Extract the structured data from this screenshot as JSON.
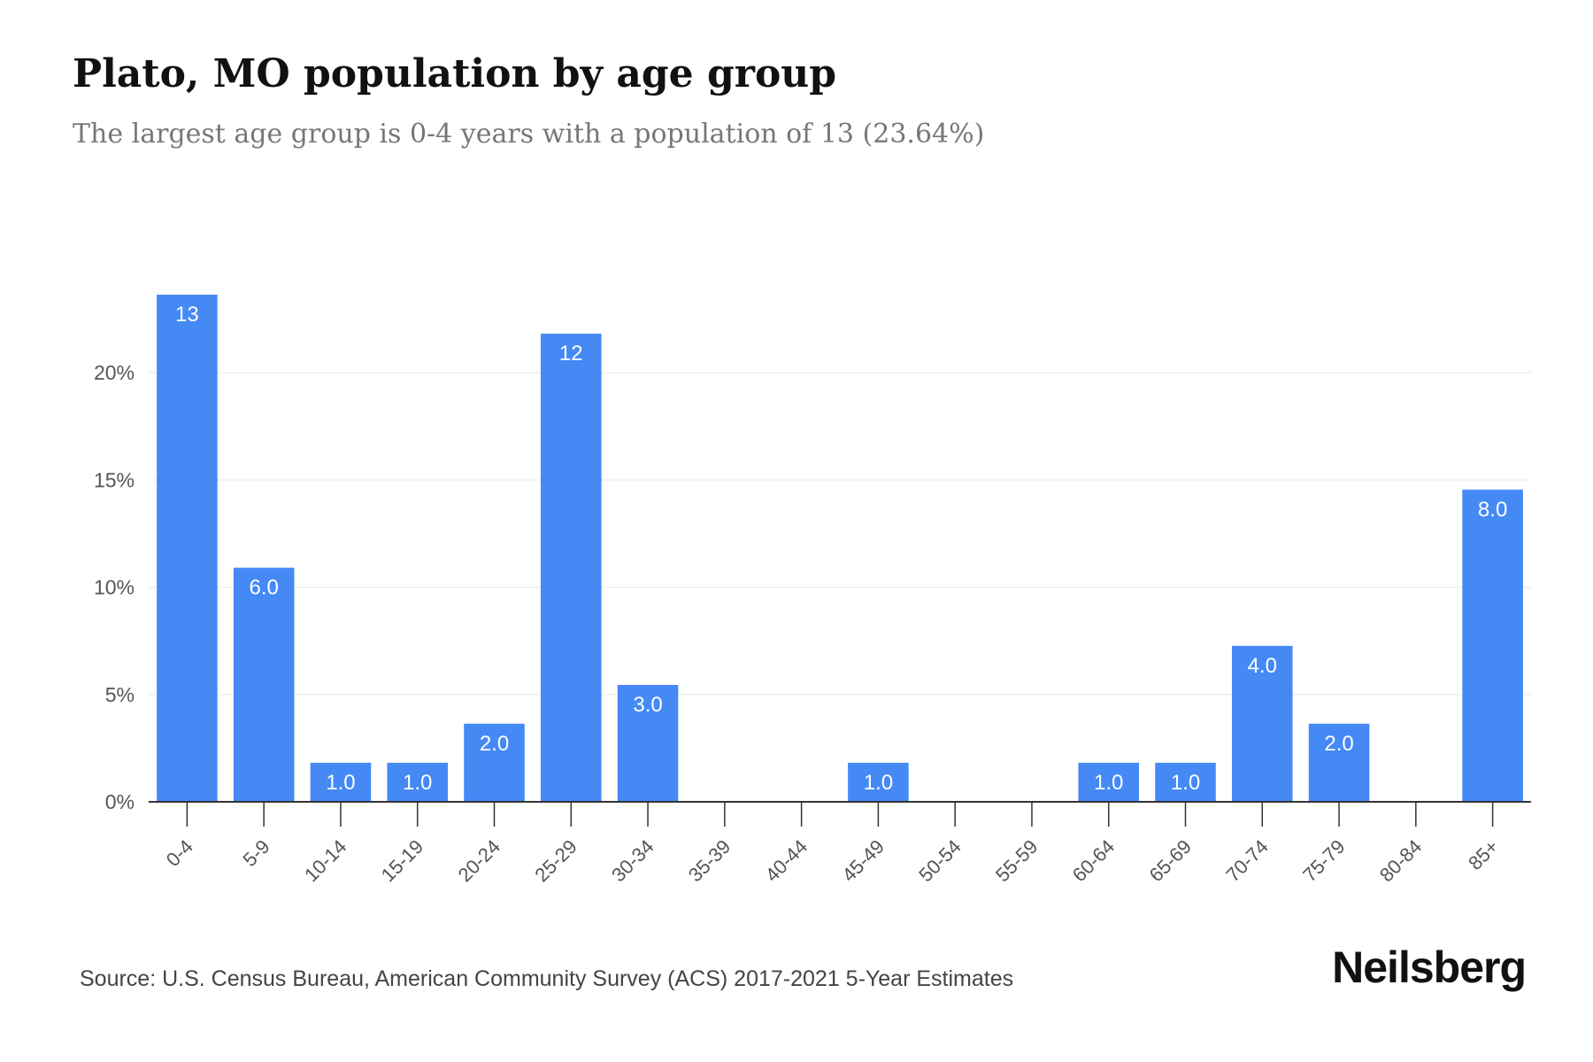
{
  "header": {
    "title": "Plato, MO population by age group",
    "subtitle": "The largest age group is 0-4 years with a population of 13 (23.64%)"
  },
  "footer": {
    "source": "Source: U.S. Census Bureau, American Community Survey (ACS) 2017-2021 5-Year Estimates",
    "brand": "Neilsberg"
  },
  "colors": {
    "bar": "#4589f5",
    "grid": "#eeeeee",
    "axis": "#333333"
  },
  "chart_data": {
    "type": "bar",
    "categories": [
      "0-4",
      "5-9",
      "10-14",
      "15-19",
      "20-24",
      "25-29",
      "30-34",
      "35-39",
      "40-44",
      "45-49",
      "50-54",
      "55-59",
      "60-64",
      "65-69",
      "70-74",
      "75-79",
      "80-84",
      "85+"
    ],
    "values": [
      23.64,
      10.91,
      1.82,
      1.82,
      3.64,
      21.82,
      5.45,
      0,
      0,
      1.82,
      0,
      0,
      1.82,
      1.82,
      7.27,
      3.64,
      0,
      14.55
    ],
    "data_labels": [
      "13",
      "6.0",
      "1.0",
      "1.0",
      "2.0",
      "12",
      "3.0",
      "",
      "",
      "1.0",
      "",
      "",
      "1.0",
      "1.0",
      "4.0",
      "2.0",
      "",
      "8.0"
    ],
    "ylim": [
      0,
      25
    ],
    "yticks": [
      0,
      5,
      10,
      15,
      20
    ],
    "ytick_labels": [
      "0%",
      "5%",
      "10%",
      "15%",
      "20%"
    ],
    "grid": true,
    "legend": "none"
  }
}
